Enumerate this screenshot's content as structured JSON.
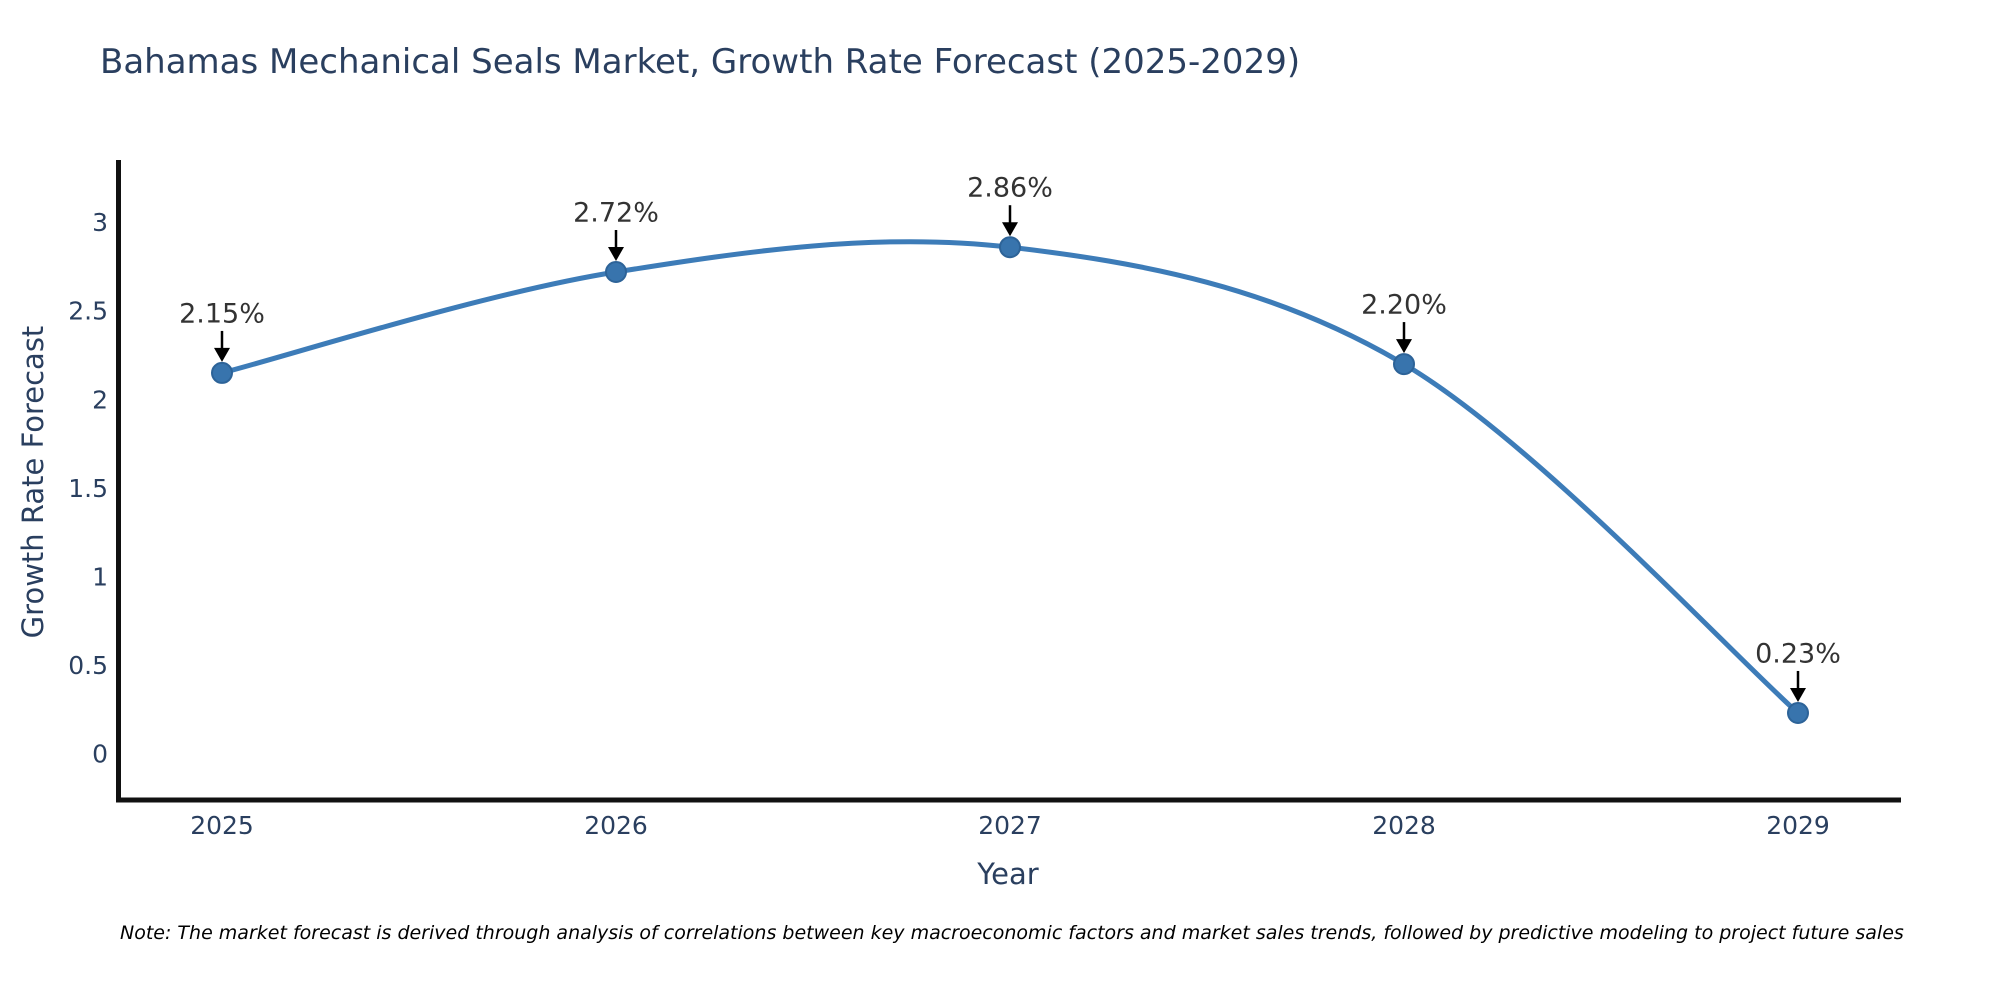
{
  "title": "Bahamas Mechanical Seals Market, Growth Rate Forecast (2025-2029)",
  "note": "Note: The market forecast is derived through analysis of correlations between key macroeconomic factors and market sales trends, followed by predictive modeling to project future sales",
  "colors": {
    "background": "#ffffff",
    "title_text": "#2a3f5f",
    "axis_title_text": "#2a3f5f",
    "tick_text": "#2a3f5f",
    "annotation_text": "#333333",
    "note_text": "#000000",
    "axis_line": "#111111",
    "line": "#3d7cb8",
    "marker_fill": "#3874ad",
    "marker_edge": "#2d6398",
    "arrow": "#000000"
  },
  "chart_data": {
    "type": "line",
    "title": "Bahamas Mechanical Seals Market, Growth Rate Forecast (2025-2029)",
    "xlabel": "Year",
    "ylabel": "Growth Rate Forecast",
    "categories": [
      "2025",
      "2026",
      "2027",
      "2028",
      "2029"
    ],
    "x": [
      2025,
      2026,
      2027,
      2028,
      2029
    ],
    "series": [
      {
        "name": "Growth Rate Forecast (%)",
        "values": [
          2.15,
          2.72,
          2.86,
          2.2,
          0.23
        ]
      }
    ],
    "point_labels": [
      "2.15%",
      "2.72%",
      "2.86%",
      "2.20%",
      "0.23%"
    ],
    "y_ticks": [
      0,
      0.5,
      1,
      1.5,
      2,
      2.5,
      3
    ],
    "y_tick_labels": [
      "0",
      "0.5",
      "1",
      "1.5",
      "2",
      "2.5",
      "3"
    ],
    "ylim": [
      -0.26,
      3.36
    ],
    "grid": false,
    "legend": false,
    "line_shape": "spline",
    "markers": true,
    "annotations_with_arrows": true
  }
}
